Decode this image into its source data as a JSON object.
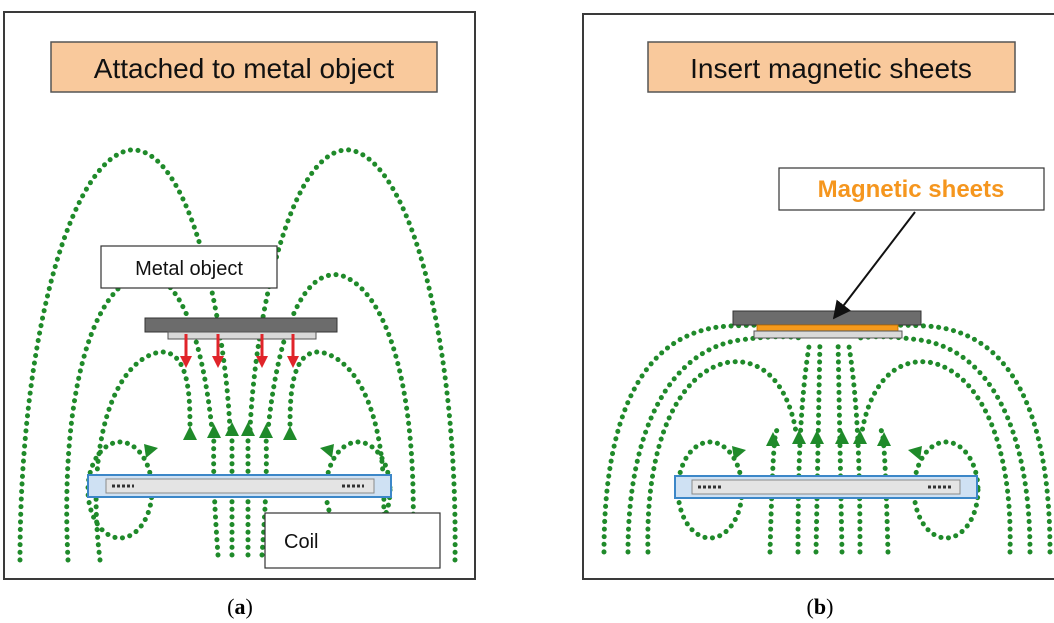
{
  "panel_a": {
    "title": "Attached to metal object",
    "metal_label": "Metal object",
    "coil_label": "Coil",
    "caption_open": "(",
    "caption_letter": "a",
    "caption_close": ")"
  },
  "panel_b": {
    "title": "Insert magnetic sheets",
    "sheet_label": "Magnetic sheets",
    "caption_open": "(",
    "caption_letter": "b",
    "caption_close": ")"
  },
  "colors": {
    "title_fill": "#f9c99c",
    "field_line": "#1f8a2a",
    "force_arrow": "#e0242a",
    "coil_fill": "#cfe1f3",
    "coil_edge": "#3c87c8",
    "metal_plate": "#6c6c6c",
    "magnetic_sheet": "#f59a1c",
    "magnetic_label": "#f5961e"
  },
  "icons": {
    "force_arrows": "down-arrow-icon",
    "field_arrows": "triangle-arrowhead-icon",
    "pointer": "pointer-arrow-icon"
  }
}
